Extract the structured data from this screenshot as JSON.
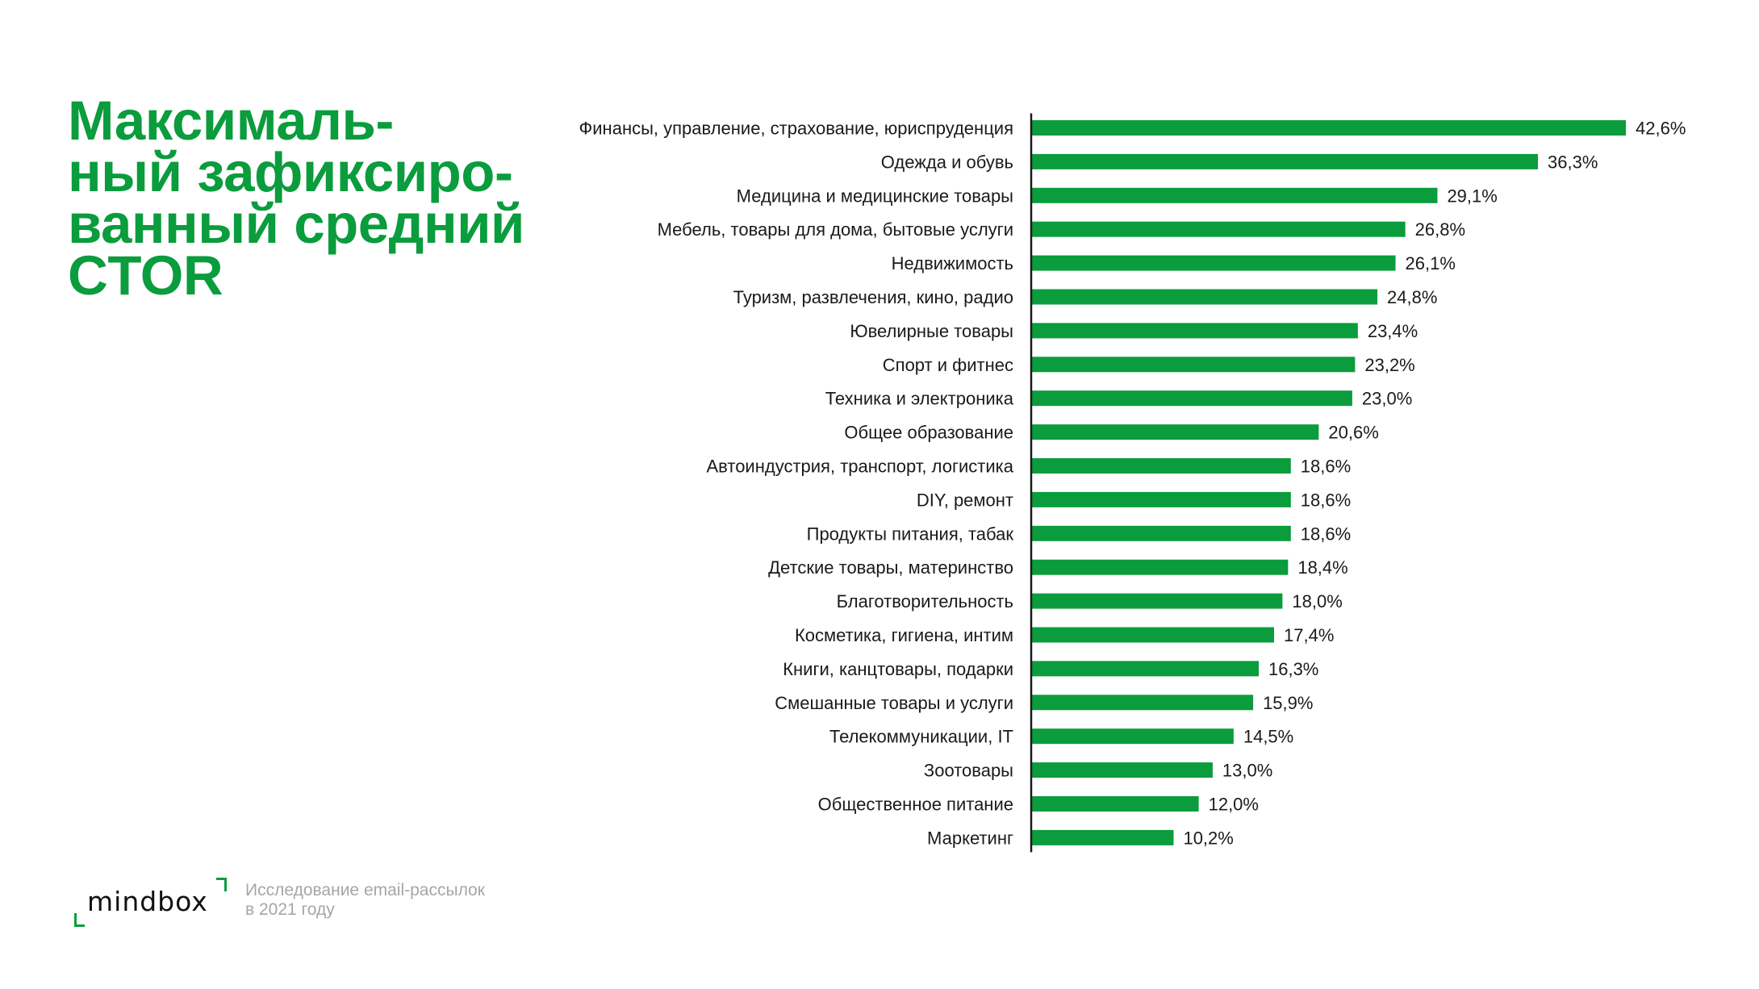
{
  "headline": {
    "lines": [
      "Максималь-",
      "ный зафиксиро-",
      "ванный средний",
      "CTOR"
    ]
  },
  "colors": {
    "accent": "#0a9c3d",
    "bar": "#0a9c3d",
    "text": "#1a1a1a",
    "muted": "#a6a6a6"
  },
  "chart_data": {
    "type": "bar",
    "orientation": "horizontal",
    "title": "",
    "xlabel": "",
    "ylabel": "",
    "xlim": [
      0,
      42.6
    ],
    "grid": false,
    "legend": "none",
    "categories": [
      "Финансы, управление, страхование, юриспруденция",
      "Одежда и обувь",
      "Медицина и медицинские товары",
      "Мебель, товары для дома, бытовые услуги",
      "Недвижимость",
      "Туризм, развлечения, кино, радио",
      "Ювелирные товары",
      "Спорт и фитнес",
      "Техника и электроника",
      "Общее образование",
      "Автоиндустрия, транспорт, логистика",
      "DIY, ремонт",
      "Продукты питания, табак",
      "Детские товары, материнство",
      "Благотворительность",
      "Косметика, гигиена, интим",
      "Книги, канцтовары, подарки",
      "Смешанные товары и услуги",
      "Телекоммуникации, IT",
      "Зоотовары",
      "Общественное питание",
      "Маркетинг"
    ],
    "values": [
      42.6,
      36.3,
      29.1,
      26.8,
      26.1,
      24.8,
      23.4,
      23.2,
      23.0,
      20.6,
      18.6,
      18.6,
      18.6,
      18.4,
      18.0,
      17.4,
      16.3,
      15.9,
      14.5,
      13.0,
      12.0,
      10.2
    ],
    "value_labels": [
      "42,6%",
      "36,3%",
      "29,1%",
      "26,8%",
      "26,1%",
      "24,8%",
      "23,4%",
      "23,2%",
      "23,0%",
      "20,6%",
      "18,6%",
      "18,6%",
      "18,6%",
      "18,4%",
      "18,0%",
      "17,4%",
      "16,3%",
      "15,9%",
      "14,5%",
      "13,0%",
      "12,0%",
      "10,2%"
    ]
  },
  "footer": {
    "logo_text": "mindbox",
    "note_lines": [
      "Исследование email-рассылок",
      "в 2021 году"
    ]
  }
}
